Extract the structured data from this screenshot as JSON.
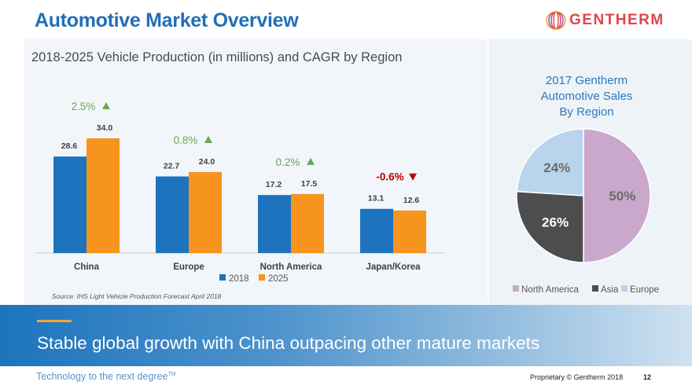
{
  "page": {
    "title": "Automotive Market Overview",
    "banner_text": "Stable global growth with China outpacing other mature markets",
    "footer_tagline": "Technology to the next degree",
    "footer_tm": "TM",
    "footer_copyright": "Proprietary © Gentherm 2018",
    "page_number": "12",
    "logo_text": "GENTHERM"
  },
  "colors": {
    "series_2018": "#1e73be",
    "series_2025": "#f7941d",
    "cagr_positive": "#6aa84f",
    "cagr_negative": "#c00000",
    "pie_north_america": "#c9a8cc",
    "pie_asia": "#4d4d4f",
    "pie_europe": "#b9d4ec"
  },
  "chart_data": [
    {
      "type": "bar",
      "title": "2018-2025 Vehicle Production (in millions) and CAGR by Region",
      "categories": [
        "China",
        "Europe",
        "North America",
        "Japan/Korea"
      ],
      "series": [
        {
          "name": "2018",
          "values": [
            28.6,
            22.7,
            17.2,
            13.1
          ],
          "labels": [
            "28.6",
            "22.7",
            "17.2",
            "13.1"
          ]
        },
        {
          "name": "2025",
          "values": [
            34.0,
            24.0,
            17.5,
            12.6
          ],
          "labels": [
            "34.0",
            "24.0",
            "17.5",
            "12.6"
          ]
        }
      ],
      "cagr": [
        {
          "label": "2.5%",
          "direction": "up"
        },
        {
          "label": "0.8%",
          "direction": "up"
        },
        {
          "label": "0.2%",
          "direction": "up"
        },
        {
          "label": "-0.6%",
          "direction": "down"
        }
      ],
      "ylim": [
        0,
        40
      ],
      "legend": [
        "2018",
        "2025"
      ],
      "legend_position": "bottom",
      "source": "Source: IHS Light Vehicle Production Forecast April 2018"
    },
    {
      "type": "pie",
      "title_lines": [
        "2017 Gentherm",
        "Automotive Sales",
        "By Region"
      ],
      "slices": [
        {
          "name": "North America",
          "value": 50,
          "label": "50%"
        },
        {
          "name": "Asia",
          "value": 26,
          "label": "26%"
        },
        {
          "name": "Europe",
          "value": 24,
          "label": "24%"
        }
      ],
      "legend": [
        "North America",
        "Asia",
        "Europe"
      ],
      "legend_position": "bottom"
    }
  ]
}
